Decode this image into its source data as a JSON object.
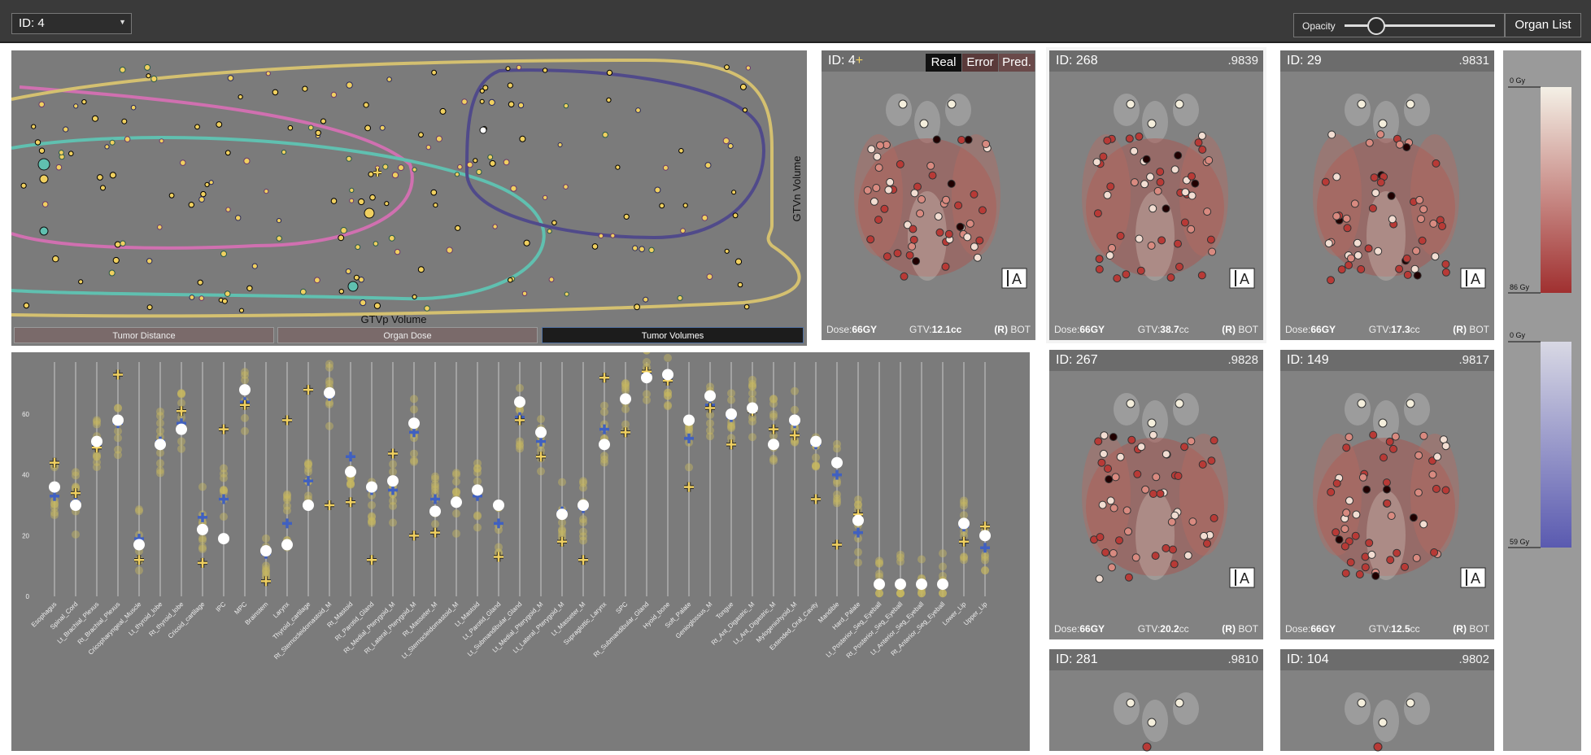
{
  "header": {
    "id_select": "ID: 4",
    "opacity_label": "Opacity",
    "opacity_value": 0.2,
    "organ_list_label": "Organ List"
  },
  "scatter": {
    "xlabel": "GTVp Volume",
    "ylabel": "GTVn Volume"
  },
  "tabs": [
    "Tumor Distance",
    "Organ Dose",
    "Tumor Volumes"
  ],
  "selected_tab": "Tumor Volumes",
  "current_patient": {
    "id_label": "ID: 4",
    "plus_glyph": "+",
    "buttons": [
      "Real",
      "Error",
      "Pred."
    ],
    "dose_label": "Dose:",
    "dose_value": "66GY",
    "gtv_label": "GTV:",
    "gtv_value": "12.1cc",
    "side": "(R)",
    "site": "BOT"
  },
  "similar_patients": [
    {
      "id": "ID: 268",
      "score": ".9839",
      "dose": "66",
      "gtv": "38.7",
      "side": "(R)",
      "site": "BOT"
    },
    {
      "id": "ID: 29",
      "score": ".9831",
      "dose": "66",
      "gtv": "17.3",
      "side": "(R)",
      "site": "BOT"
    },
    {
      "id": "ID: 267",
      "score": ".9828",
      "dose": "66",
      "gtv": "20.2",
      "side": "(R)",
      "site": "BOT"
    },
    {
      "id": "ID: 149",
      "score": ".9817",
      "dose": "66",
      "gtv": "12.5",
      "side": "(R)",
      "site": "BOT"
    },
    {
      "id": "ID: 281",
      "score": ".9810"
    },
    {
      "id": "ID: 104",
      "score": ".9802"
    }
  ],
  "units": {
    "dose": "GY",
    "gtv": "cc"
  },
  "orientation_glyph": "A",
  "legend": {
    "dose_top": "0 Gy",
    "dose_bottom": "86 Gy",
    "error_top": "0 Gy",
    "error_bottom": "59 Gy"
  },
  "colors": {
    "background": "#7b7b7b",
    "topbar": "#3a3a3a",
    "yellow": "#f0d060",
    "pink": "#d070b0",
    "teal": "#60c0b0",
    "purple": "#504a8a",
    "blue_cross": "#4060c0",
    "dose_high": "#a02020",
    "dose_low": "#f0e8d8"
  },
  "chart_data": {
    "type": "scatter",
    "title": "",
    "yticks": [
      0,
      20,
      40,
      60
    ],
    "ylim": [
      0,
      75
    ],
    "categories": [
      "Esophagus",
      "Spinal_Cord",
      "Lt_Brachial_Plexus",
      "Rt_Brachial_Plexus",
      "Cricopharyngeal_Muscle",
      "Lt_thyroid_lobe",
      "Rt_thyroid_lobe",
      "Cricoid_cartilage",
      "IPC",
      "MPC",
      "Brainstem",
      "Larynx",
      "Thyroid_cartilage",
      "Rt_Sternocleidomastoid_M",
      "Rt_Mastoid",
      "Rt_Parotid_Gland",
      "Rt_Medial_Pterygoid_M",
      "Rt_Lateral_Pterygoid_M",
      "Rt_Masseter_M",
      "Lt_Sternocleidomastoid_M",
      "Lt_Mastoid",
      "Lt_Parotid_Gland",
      "Lt_Submandibular_Gland",
      "Lt_Medial_Pterygoid_M",
      "Lt_Lateral_Pterygoid_M",
      "Lt_Masseter_M",
      "Supraglottic_Larynx",
      "SPC",
      "Rt_Submandibular_Gland",
      "Hyoid_bone",
      "Soft_Palate",
      "Genioglossus_M",
      "Tongue",
      "Rt_Ant_Digastric_M",
      "Lt_Ant_Digastric_M",
      "Mylogeniohyoid_M",
      "Extended_Oral_Cavity",
      "Mandible",
      "Hard_Palate",
      "Lt_Posterior_Seg_Eyeball",
      "Rt_Posterior_Seg_Eyeball",
      "Lt_Anterior_Seg_Eyeball",
      "Rt_Anterior_Seg_Eyeball",
      "Lower_Lip",
      "Upper_Lip"
    ],
    "series": [
      {
        "name": "Real",
        "values": [
          36,
          30,
          51,
          58,
          17,
          50,
          55,
          22,
          19,
          68,
          15,
          17,
          30,
          67,
          41,
          36,
          38,
          57,
          28,
          31,
          35,
          30,
          64,
          54,
          27,
          30,
          50,
          65,
          72,
          73,
          58,
          66,
          60,
          62,
          50,
          58,
          51,
          44,
          25,
          4,
          4,
          4,
          4,
          24,
          20
        ]
      },
      {
        "name": "Pred.",
        "values": [
          44,
          34,
          49,
          73,
          12,
          50,
          61,
          11,
          55,
          63,
          5,
          58,
          68,
          30,
          31,
          12,
          47,
          20,
          21,
          31,
          35,
          13,
          58,
          46,
          18,
          12,
          72,
          54,
          74,
          71,
          36,
          62,
          50,
          61,
          55,
          53,
          32,
          17,
          27,
          4,
          4,
          4,
          4,
          18,
          23
        ]
      },
      {
        "name": "Mean",
        "values": [
          33,
          31,
          50,
          57,
          19,
          51,
          57,
          26,
          32,
          64,
          14,
          24,
          38,
          66,
          46,
          35,
          35,
          54,
          32,
          31,
          33,
          24,
          59,
          51,
          28,
          29,
          55,
          65,
          73,
          72,
          52,
          63,
          59,
          61,
          55,
          57,
          50,
          40,
          21,
          4,
          4,
          4,
          4,
          23,
          16
        ]
      }
    ]
  }
}
